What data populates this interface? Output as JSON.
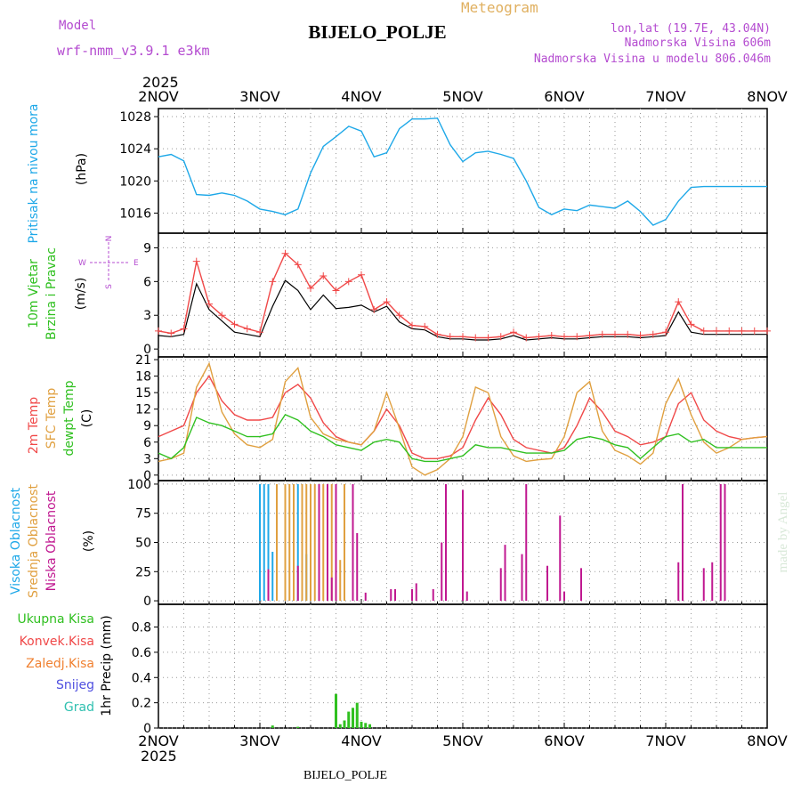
{
  "header": {
    "model_label": "Model",
    "model_name": "wrf-nmm_v3.9.1  e3km",
    "meteogram_label": "Meteogram",
    "station": "BIJELO_POLJE",
    "coords": "lon,lat (19.7E, 43.04N)",
    "elevation": "Nadmorska Visina 606m",
    "model_elevation": "Nadmorska Visina u modelu 806.046m"
  },
  "footer": {
    "station": "BIJELO_POLJE",
    "made_by": "made by Angel"
  },
  "time_axis": {
    "year": "2025",
    "labels": [
      "2NOV",
      "3NOV",
      "4NOV",
      "5NOV",
      "6NOV",
      "7NOV",
      "8NOV"
    ]
  },
  "wind_compass": {
    "n": "N",
    "w": "W",
    "e": "E",
    "s": "S"
  },
  "panels": {
    "pressure": {
      "title": "Pritisak na nivou mora",
      "unit": "(hPa)"
    },
    "wind": {
      "title1": "10m Vjetar",
      "title2": "Brzina i Pravac",
      "unit": "(m/s)"
    },
    "temp": {
      "title1": "2m Temp",
      "title2": "SFC Temp",
      "title3": "dewpt Temp",
      "unit": "(C)"
    },
    "cloud": {
      "title1": "Visoka Oblacnost",
      "title2": "Srednja Oblacnost",
      "title3": "Niska Oblacnost",
      "unit": "(%)"
    },
    "precip": {
      "legend": [
        "Ukupna Kisa",
        "Konvek.Kisa",
        "Zaledj.Kisa",
        "Snijeg",
        "Grad"
      ],
      "unit": "1hr Precip (mm)"
    }
  },
  "colors": {
    "pressure": "#1ea8e8",
    "t2m": "#f04848",
    "sfc": "#e0a040",
    "dew": "#30c020",
    "wind": "#000000",
    "gust": "#f04848",
    "cloud_high": "#1ea8e8",
    "cloud_mid": "#e0a040",
    "cloud_low": "#c01890",
    "precip_total": "#30c020",
    "precip_conv": "#f04848",
    "precip_frz": "#f08030",
    "precip_snow": "#5050e0",
    "precip_hail": "#30c0b0",
    "title_purple": "#b44bd0",
    "title_orange": "#e0b060"
  },
  "chart_data": [
    {
      "type": "line",
      "name": "pressure",
      "title": "Pritisak na nivou mora",
      "ylabel": "(hPa)",
      "ylim": [
        1013.5,
        1029
      ],
      "yticks": [
        1016,
        1020,
        1024,
        1028
      ],
      "xlim": [
        0,
        144
      ],
      "series": [
        {
          "name": "MSLP",
          "x": [
            0,
            3,
            6,
            9,
            12,
            15,
            18,
            21,
            24,
            27,
            30,
            33,
            36,
            39,
            42,
            45,
            48,
            51,
            54,
            57,
            60,
            63,
            66,
            69,
            72,
            75,
            78,
            81,
            84,
            87,
            90,
            93,
            96,
            99,
            102,
            105,
            108,
            111,
            114,
            117,
            120,
            123,
            126,
            129,
            132,
            135,
            138,
            141,
            144
          ],
          "values": [
            1023,
            1023.3,
            1022.5,
            1018.3,
            1018.2,
            1018.5,
            1018.2,
            1017.5,
            1016.5,
            1016.2,
            1015.8,
            1016.5,
            1021,
            1024.3,
            1025.5,
            1026.8,
            1026.2,
            1023,
            1023.5,
            1026.5,
            1027.7,
            1027.7,
            1027.8,
            1024.5,
            1022.4,
            1023.5,
            1023.7,
            1023.3,
            1022.8,
            1020,
            1016.7,
            1015.8,
            1016.5,
            1016.3,
            1017,
            1016.8,
            1016.6,
            1017.5,
            1016.2,
            1014.5,
            1015.2,
            1017.5,
            1019.2,
            1019.3,
            1019.3,
            1019.3,
            1019.3,
            1019.3,
            1019.3
          ]
        }
      ]
    },
    {
      "type": "line",
      "name": "wind",
      "title": "10m Vjetar Brzina i Pravac",
      "ylabel": "(m/s)",
      "ylim": [
        -0.7,
        10.3
      ],
      "yticks": [
        0,
        3,
        6,
        9
      ],
      "xlim": [
        0,
        144
      ],
      "series": [
        {
          "name": "speed",
          "x": [
            0,
            3,
            6,
            9,
            12,
            15,
            18,
            21,
            24,
            27,
            30,
            33,
            36,
            39,
            42,
            45,
            48,
            51,
            54,
            57,
            60,
            63,
            66,
            69,
            72,
            75,
            78,
            81,
            84,
            87,
            90,
            93,
            96,
            99,
            102,
            105,
            108,
            111,
            114,
            117,
            120,
            123,
            126,
            129,
            132,
            135,
            138,
            141,
            144
          ],
          "values": [
            1.2,
            1.1,
            1.3,
            5.8,
            3.5,
            2.5,
            1.5,
            1.3,
            1.1,
            3.8,
            6.1,
            5.2,
            3.5,
            4.8,
            3.6,
            3.7,
            3.9,
            3.3,
            3.8,
            2.4,
            1.8,
            1.7,
            1.1,
            0.9,
            0.9,
            0.8,
            0.8,
            0.9,
            1.2,
            0.8,
            0.9,
            1,
            0.9,
            0.9,
            1,
            1.1,
            1.1,
            1.1,
            1,
            1.1,
            1.2,
            3.3,
            1.5,
            1.3,
            1.3,
            1.3,
            1.3,
            1.3,
            1.3
          ]
        },
        {
          "name": "gust",
          "x": [
            0,
            3,
            6,
            9,
            12,
            15,
            18,
            21,
            24,
            27,
            30,
            33,
            36,
            39,
            42,
            45,
            48,
            51,
            54,
            57,
            60,
            63,
            66,
            69,
            72,
            75,
            78,
            81,
            84,
            87,
            90,
            93,
            96,
            99,
            102,
            105,
            108,
            111,
            114,
            117,
            120,
            123,
            126,
            129,
            132,
            135,
            138,
            141,
            144
          ],
          "values": [
            1.6,
            1.4,
            1.8,
            7.8,
            4,
            3,
            2.2,
            1.8,
            1.5,
            6,
            8.5,
            7.5,
            5.4,
            6.5,
            5.2,
            6,
            6.6,
            3.5,
            4.2,
            3,
            2.1,
            2,
            1.3,
            1.1,
            1.1,
            1,
            1,
            1.1,
            1.5,
            1,
            1.1,
            1.2,
            1.1,
            1.1,
            1.2,
            1.3,
            1.3,
            1.3,
            1.2,
            1.3,
            1.5,
            4.2,
            2.2,
            1.6,
            1.6,
            1.6,
            1.6,
            1.6,
            1.6
          ]
        }
      ]
    },
    {
      "type": "line",
      "name": "temperature",
      "title": "2m Temp / SFC Temp / dewpt Temp",
      "ylabel": "(C)",
      "ylim": [
        -1,
        21.5
      ],
      "yticks": [
        0,
        3,
        6,
        9,
        12,
        15,
        18,
        21
      ],
      "xlim": [
        0,
        144
      ],
      "series": [
        {
          "name": "2m Temp",
          "x": [
            0,
            3,
            6,
            9,
            12,
            15,
            18,
            21,
            24,
            27,
            30,
            33,
            36,
            39,
            42,
            45,
            48,
            51,
            54,
            57,
            60,
            63,
            66,
            69,
            72,
            75,
            78,
            81,
            84,
            87,
            90,
            93,
            96,
            99,
            102,
            105,
            108,
            111,
            114,
            117,
            120,
            123,
            126,
            129,
            132,
            135,
            138,
            141,
            144
          ],
          "values": [
            7,
            8,
            9,
            15,
            18,
            13.5,
            11,
            10,
            10,
            10.5,
            15,
            16.5,
            14,
            9.5,
            7,
            6,
            5.5,
            8,
            12,
            9,
            4,
            3,
            3,
            3.5,
            5,
            10,
            14,
            11,
            6.5,
            5,
            4.5,
            4,
            5,
            9,
            14,
            11.5,
            8,
            7,
            5.5,
            6,
            7,
            13,
            15,
            10,
            8,
            7,
            6.5,
            6.8,
            7
          ]
        },
        {
          "name": "SFC Temp",
          "x": [
            0,
            3,
            6,
            9,
            12,
            15,
            18,
            21,
            24,
            27,
            30,
            33,
            36,
            39,
            42,
            45,
            48,
            51,
            54,
            57,
            60,
            63,
            66,
            69,
            72,
            75,
            78,
            81,
            84,
            87,
            90,
            93,
            96,
            99,
            102,
            105,
            108,
            111,
            114,
            117,
            120,
            123,
            126,
            129,
            132,
            135,
            138,
            141,
            144
          ],
          "values": [
            2.5,
            3,
            4,
            16,
            20.3,
            11.5,
            7.5,
            5.5,
            5,
            6.5,
            17,
            19.5,
            10.5,
            7.5,
            6.5,
            6,
            5.5,
            8,
            15,
            8.5,
            1.5,
            0,
            1,
            3,
            7,
            16,
            15,
            7,
            3.5,
            2.5,
            2.8,
            3,
            7,
            15,
            17,
            8,
            4.5,
            3.5,
            2,
            4,
            13,
            17.5,
            11,
            6,
            4,
            5,
            6.5,
            6.8,
            7
          ]
        },
        {
          "name": "dewpt Temp",
          "x": [
            0,
            3,
            6,
            9,
            12,
            15,
            18,
            21,
            24,
            27,
            30,
            33,
            36,
            39,
            42,
            45,
            48,
            51,
            54,
            57,
            60,
            63,
            66,
            69,
            72,
            75,
            78,
            81,
            84,
            87,
            90,
            93,
            96,
            99,
            102,
            105,
            108,
            111,
            114,
            117,
            120,
            123,
            126,
            129,
            132,
            135,
            138,
            141,
            144
          ],
          "values": [
            4,
            3,
            5,
            10.5,
            9.5,
            9,
            8,
            7,
            7,
            7.5,
            11,
            10,
            8,
            7,
            5.5,
            5,
            4.5,
            6,
            6.5,
            6,
            3,
            2.5,
            2.5,
            3,
            3.5,
            5.5,
            5,
            5,
            4.5,
            4,
            4,
            4,
            4.5,
            6.5,
            7,
            6.5,
            5.5,
            5,
            3,
            5,
            7,
            7.5,
            6,
            6.5,
            5,
            5,
            5,
            5,
            5
          ]
        }
      ]
    },
    {
      "type": "bar",
      "name": "cloud",
      "title": "Visoka / Srednja / Niska Oblacnost",
      "ylabel": "(%)",
      "ylim": [
        -3,
        103
      ],
      "yticks": [
        0,
        25,
        50,
        75,
        100
      ],
      "xlim": [
        0,
        144
      ],
      "series": [
        {
          "name": "Visoka Oblacnost",
          "x": [
            24,
            25,
            26,
            27,
            32,
            33,
            34,
            35
          ],
          "values": [
            100,
            100,
            100,
            42,
            95,
            100,
            100,
            40
          ]
        },
        {
          "name": "Srednja Oblacnost",
          "x": [
            28,
            30,
            31,
            32,
            34,
            35,
            36,
            37,
            38,
            39,
            40,
            41,
            42,
            43,
            44
          ],
          "values": [
            100,
            100,
            100,
            100,
            100,
            100,
            100,
            100,
            100,
            100,
            100,
            100,
            100,
            35,
            100
          ]
        },
        {
          "name": "Niska Oblacnost",
          "x": [
            26,
            33,
            38,
            40,
            41,
            42,
            46,
            47,
            49,
            55,
            56,
            60,
            61,
            65,
            67,
            68,
            72,
            73,
            81,
            82,
            86,
            87,
            92,
            95,
            96,
            100,
            123,
            124,
            129,
            131,
            133,
            134
          ],
          "values": [
            27,
            30,
            100,
            100,
            20,
            100,
            100,
            58,
            7,
            10,
            10,
            10,
            15,
            10,
            50,
            100,
            95,
            8,
            28,
            48,
            40,
            100,
            30,
            73,
            8,
            28,
            33,
            100,
            28,
            33,
            100,
            100
          ]
        }
      ]
    },
    {
      "type": "bar",
      "name": "precip",
      "title": "1hr Precip",
      "ylabel": "1hr Precip (mm)",
      "ylim": [
        0,
        0.98
      ],
      "yticks": [
        0,
        0.2,
        0.4,
        0.6,
        0.8
      ],
      "xlim": [
        0,
        144
      ],
      "series": [
        {
          "name": "Ukupna Kisa",
          "x": [
            27,
            33,
            42,
            43,
            44,
            45,
            46,
            47,
            48,
            49,
            50
          ],
          "values": [
            0.02,
            0.01,
            0.27,
            0.03,
            0.06,
            0.13,
            0.16,
            0.2,
            0.05,
            0.04,
            0.03
          ]
        }
      ]
    }
  ]
}
